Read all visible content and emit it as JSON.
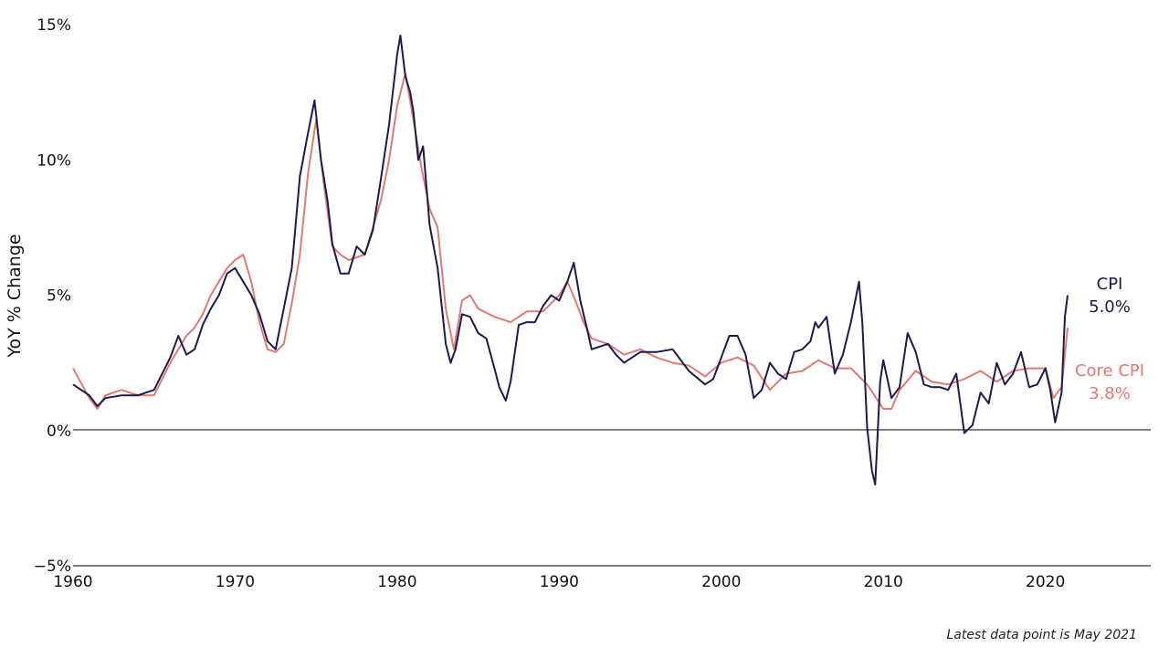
{
  "chart_data": {
    "type": "line",
    "ylabel": "YoY % Change",
    "ylim": [
      -5,
      15
    ],
    "xlim": [
      1960,
      2026.5
    ],
    "x_ticks": [
      "1960",
      "1970",
      "1980",
      "1990",
      "2000",
      "2010",
      "2020"
    ],
    "y_ticks": [
      "15%",
      "10%",
      "5%",
      "0%",
      "−5%"
    ],
    "zero_line": true,
    "grid": false,
    "note": "Latest data point is May 2021",
    "series": [
      {
        "name": "CPI",
        "color": "#1c1a4e",
        "end_value_label": "5.0%",
        "x": [
          1960.0,
          1961.0,
          1961.5,
          1962.0,
          1963.0,
          1964.0,
          1965.0,
          1966.0,
          1966.5,
          1967.0,
          1967.5,
          1968.0,
          1968.5,
          1969.0,
          1969.5,
          1970.0,
          1970.5,
          1971.0,
          1971.5,
          1972.0,
          1972.5,
          1973.0,
          1973.5,
          1974.0,
          1974.5,
          1974.9,
          1975.3,
          1975.7,
          1976.0,
          1976.5,
          1977.0,
          1977.5,
          1978.0,
          1978.5,
          1979.0,
          1979.5,
          1980.0,
          1980.2,
          1980.5,
          1980.8,
          1981.0,
          1981.3,
          1981.6,
          1982.0,
          1982.5,
          1983.0,
          1983.3,
          1983.6,
          1984.0,
          1984.5,
          1985.0,
          1985.5,
          1986.0,
          1986.3,
          1986.7,
          1987.0,
          1987.5,
          1988.0,
          1988.5,
          1989.0,
          1989.5,
          1990.0,
          1990.5,
          1990.9,
          1991.3,
          1991.7,
          1992.0,
          1992.5,
          1993.0,
          1993.5,
          1994.0,
          1995.0,
          1996.0,
          1997.0,
          1998.0,
          1999.0,
          1999.5,
          2000.0,
          2000.5,
          2001.0,
          2001.5,
          2002.0,
          2002.5,
          2003.0,
          2003.5,
          2004.0,
          2004.5,
          2005.0,
          2005.5,
          2005.8,
          2006.0,
          2006.5,
          2007.0,
          2007.5,
          2008.0,
          2008.5,
          2008.7,
          2009.0,
          2009.3,
          2009.5,
          2009.8,
          2010.0,
          2010.5,
          2011.0,
          2011.5,
          2012.0,
          2012.5,
          2013.0,
          2013.5,
          2014.0,
          2014.5,
          2015.0,
          2015.5,
          2016.0,
          2016.5,
          2017.0,
          2017.5,
          2018.0,
          2018.5,
          2019.0,
          2019.5,
          2020.0,
          2020.3,
          2020.6,
          2021.0,
          2021.2,
          2021.37
        ],
        "values": [
          1.7,
          1.3,
          0.9,
          1.2,
          1.3,
          1.3,
          1.5,
          2.7,
          3.5,
          2.8,
          3.0,
          3.9,
          4.5,
          5.0,
          5.8,
          6.0,
          5.5,
          5.0,
          4.3,
          3.3,
          3.0,
          4.5,
          6.0,
          9.4,
          11.0,
          12.2,
          10.0,
          8.5,
          6.9,
          5.8,
          5.8,
          6.8,
          6.5,
          7.4,
          9.3,
          11.3,
          13.9,
          14.6,
          13.1,
          12.5,
          11.8,
          10.0,
          10.5,
          7.6,
          6.0,
          3.2,
          2.5,
          3.0,
          4.3,
          4.2,
          3.6,
          3.4,
          2.3,
          1.6,
          1.1,
          1.8,
          3.9,
          4.0,
          4.0,
          4.6,
          5.0,
          4.8,
          5.5,
          6.2,
          4.8,
          3.8,
          3.0,
          3.1,
          3.2,
          2.8,
          2.5,
          2.9,
          2.9,
          3.0,
          2.2,
          1.7,
          1.9,
          2.7,
          3.5,
          3.5,
          2.8,
          1.2,
          1.5,
          2.5,
          2.1,
          1.9,
          2.9,
          3.0,
          3.3,
          4.0,
          3.8,
          4.2,
          2.1,
          2.8,
          4.0,
          5.5,
          4.0,
          0.1,
          -1.5,
          -2.0,
          1.8,
          2.6,
          1.2,
          1.6,
          3.6,
          2.9,
          1.7,
          1.6,
          1.6,
          1.5,
          2.1,
          -0.1,
          0.2,
          1.4,
          1.0,
          2.5,
          1.7,
          2.1,
          2.9,
          1.6,
          1.7,
          2.3,
          1.5,
          0.3,
          1.4,
          4.2,
          5.0
        ]
      },
      {
        "name": "Core CPI",
        "color": "#e07a72",
        "end_value_label": "3.8%",
        "x": [
          1960.0,
          1961.0,
          1961.5,
          1962.0,
          1963.0,
          1964.0,
          1965.0,
          1966.0,
          1966.5,
          1967.0,
          1967.5,
          1968.0,
          1968.5,
          1969.0,
          1969.5,
          1970.0,
          1970.5,
          1971.0,
          1971.5,
          1972.0,
          1972.5,
          1973.0,
          1973.5,
          1974.0,
          1974.5,
          1975.0,
          1975.5,
          1976.0,
          1976.5,
          1977.0,
          1977.5,
          1978.0,
          1978.5,
          1979.0,
          1979.5,
          1980.0,
          1980.5,
          1981.0,
          1981.5,
          1982.0,
          1982.5,
          1983.0,
          1983.5,
          1984.0,
          1984.5,
          1985.0,
          1986.0,
          1987.0,
          1988.0,
          1989.0,
          1990.0,
          1990.5,
          1991.0,
          1991.5,
          1992.0,
          1993.0,
          1994.0,
          1995.0,
          1996.0,
          1997.0,
          1998.0,
          1999.0,
          2000.0,
          2001.0,
          2002.0,
          2003.0,
          2004.0,
          2005.0,
          2006.0,
          2007.0,
          2008.0,
          2009.0,
          2010.0,
          2010.5,
          2011.0,
          2012.0,
          2013.0,
          2014.0,
          2015.0,
          2016.0,
          2017.0,
          2018.0,
          2019.0,
          2020.0,
          2020.5,
          2021.0,
          2021.37
        ],
        "values": [
          2.3,
          1.2,
          0.8,
          1.3,
          1.5,
          1.3,
          1.3,
          2.5,
          3.0,
          3.5,
          3.8,
          4.3,
          5.0,
          5.5,
          6.0,
          6.3,
          6.5,
          5.5,
          4.0,
          3.0,
          2.9,
          3.2,
          4.7,
          6.5,
          9.5,
          11.5,
          9.0,
          6.8,
          6.5,
          6.3,
          6.4,
          6.5,
          7.5,
          8.5,
          10.0,
          12.0,
          13.2,
          11.5,
          9.7,
          8.2,
          7.5,
          4.5,
          3.0,
          4.8,
          5.0,
          4.5,
          4.2,
          4.0,
          4.4,
          4.4,
          5.0,
          5.5,
          4.8,
          4.0,
          3.4,
          3.2,
          2.8,
          3.0,
          2.7,
          2.5,
          2.4,
          2.0,
          2.5,
          2.7,
          2.4,
          1.5,
          2.1,
          2.2,
          2.6,
          2.3,
          2.3,
          1.7,
          0.8,
          0.8,
          1.5,
          2.2,
          1.8,
          1.7,
          1.9,
          2.2,
          1.8,
          2.2,
          2.3,
          2.3,
          1.2,
          1.6,
          3.8
        ]
      }
    ]
  }
}
